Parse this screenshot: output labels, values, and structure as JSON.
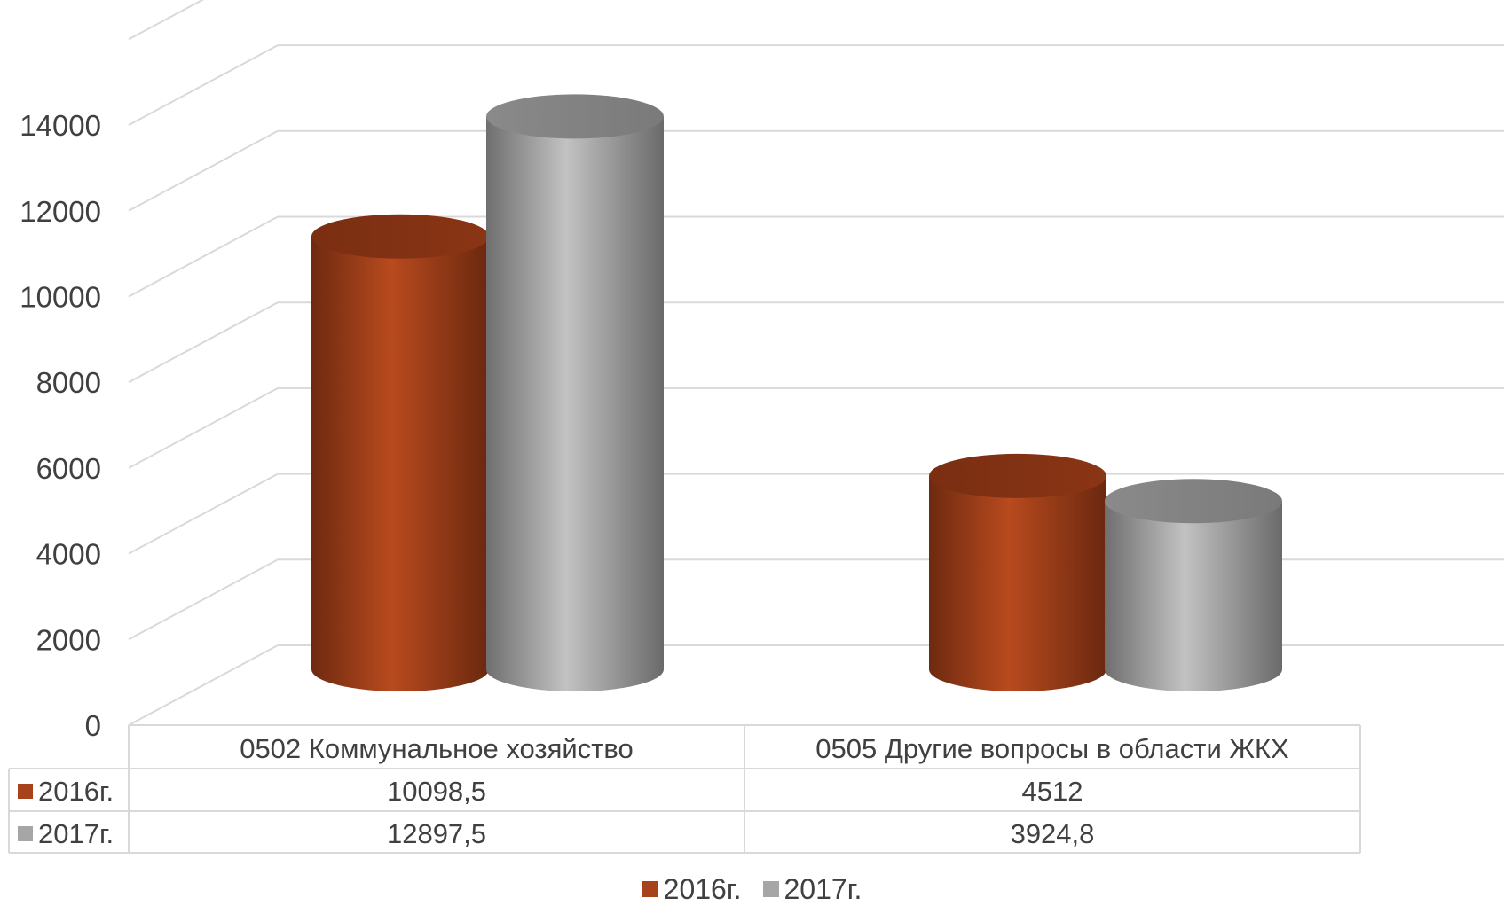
{
  "chart_data": {
    "type": "bar",
    "style": "3d-cylinder",
    "categories": [
      "0502 Коммунальное хозяйство",
      "0505 Другие вопросы в области ЖКХ"
    ],
    "series": [
      {
        "name": "2016г.",
        "values": [
          10098.5,
          4512
        ],
        "labels": [
          "10098,5",
          "4512"
        ],
        "color": "#A8421C"
      },
      {
        "name": "2017г.",
        "values": [
          12897.5,
          3924.8
        ],
        "labels": [
          "12897,5",
          "3924,8"
        ],
        "color": "#A6A6A6"
      }
    ],
    "yticks": [
      "0",
      "2000",
      "4000",
      "6000",
      "8000",
      "10000",
      "12000",
      "14000"
    ],
    "ylim": [
      0,
      16000
    ],
    "grid": true,
    "data_table": true,
    "legend_position": "bottom"
  }
}
